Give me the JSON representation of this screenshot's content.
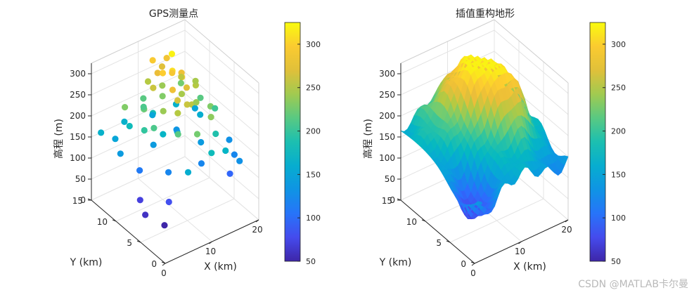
{
  "chart_data": [
    {
      "type": "scatter3d",
      "title": "GPS测量点",
      "xlabel": "X (km)",
      "ylabel": "Y (km)",
      "zlabel": "高程 (m)",
      "xlim": [
        0,
        20
      ],
      "ylim": [
        0,
        15
      ],
      "zlim": [
        0,
        325
      ],
      "xticks": [
        "0",
        "10",
        "20"
      ],
      "yticks": [
        "0",
        "5",
        "10",
        "15"
      ],
      "zticks": [
        "0",
        "50",
        "100",
        "150",
        "200",
        "250",
        "300"
      ],
      "colormap": "parula",
      "clim": [
        50,
        325
      ],
      "colorbar_ticks": [
        "50",
        "100",
        "150",
        "200",
        "250",
        "300"
      ],
      "points": [
        [
          1,
          14,
          165
        ],
        [
          3,
          13,
          150
        ],
        [
          2,
          11,
          140
        ],
        [
          5,
          12,
          180
        ],
        [
          4,
          9,
          110
        ],
        [
          6,
          14,
          165
        ],
        [
          2,
          7,
          70
        ],
        [
          8,
          10,
          140
        ],
        [
          7,
          6,
          120
        ],
        [
          10,
          12,
          185
        ],
        [
          9,
          9,
          170
        ],
        [
          5,
          4,
          80
        ],
        [
          12,
          14,
          150
        ],
        [
          11,
          8,
          175
        ],
        [
          14,
          11,
          135
        ],
        [
          13,
          5,
          120
        ],
        [
          16,
          13,
          165
        ],
        [
          15,
          7,
          140
        ],
        [
          18,
          10,
          160
        ],
        [
          17,
          3,
          95
        ],
        [
          19,
          12,
          150
        ],
        [
          20,
          6,
          130
        ],
        [
          3,
          3,
          45
        ],
        [
          1,
          5,
          60
        ],
        [
          7,
          2,
          160
        ],
        [
          10,
          3,
          225
        ],
        [
          12,
          2,
          180
        ],
        [
          15,
          2,
          170
        ],
        [
          18,
          2,
          130
        ],
        [
          19,
          4,
          120
        ],
        [
          9,
          13,
          215
        ],
        [
          11,
          11,
          230
        ],
        [
          13,
          9,
          245
        ],
        [
          14,
          7,
          240
        ],
        [
          16,
          9,
          250
        ],
        [
          12,
          6,
          255
        ],
        [
          10,
          7,
          265
        ],
        [
          8,
          8,
          240
        ],
        [
          6,
          10,
          235
        ],
        [
          4,
          12,
          230
        ],
        [
          10,
          10,
          300
        ],
        [
          11,
          9,
          310
        ],
        [
          12,
          10,
          290
        ],
        [
          13,
          11,
          320
        ],
        [
          11,
          12,
          275
        ],
        [
          9,
          11,
          260
        ],
        [
          14,
          10,
          280
        ],
        [
          12,
          8,
          300
        ],
        [
          13,
          8,
          270
        ],
        [
          10,
          8,
          280
        ],
        [
          11,
          6,
          260
        ],
        [
          9,
          6,
          250
        ],
        [
          15,
          11,
          255
        ],
        [
          16,
          6,
          230
        ],
        [
          14,
          4,
          235
        ],
        [
          8,
          5,
          215
        ],
        [
          17,
          9,
          215
        ],
        [
          18,
          7,
          205
        ],
        [
          7,
          11,
          220
        ],
        [
          6,
          8,
          210
        ],
        [
          5,
          9,
          200
        ],
        [
          15,
          4,
          190
        ],
        [
          12,
          12,
          240
        ],
        [
          13,
          13,
          270
        ],
        [
          14,
          13,
          285
        ],
        [
          11,
          13,
          295
        ],
        [
          10,
          13,
          250
        ],
        [
          8,
          12,
          210
        ],
        [
          16,
          12,
          225
        ],
        [
          17,
          10,
          245
        ]
      ]
    },
    {
      "type": "surface3d",
      "title": "插值重构地形",
      "xlabel": "X (km)",
      "ylabel": "Y (km)",
      "zlabel": "高程 (m)",
      "xlim": [
        0,
        20
      ],
      "ylim": [
        0,
        15
      ],
      "zlim": [
        0,
        325
      ],
      "xticks": [
        "0",
        "10",
        "20"
      ],
      "yticks": [
        "0",
        "5",
        "10",
        "15"
      ],
      "zticks": [
        "0",
        "50",
        "100",
        "150",
        "200",
        "250",
        "300"
      ],
      "colormap": "parula",
      "clim": [
        50,
        325
      ],
      "colorbar_ticks": [
        "50",
        "100",
        "150",
        "200",
        "250",
        "300"
      ],
      "surface": {
        "base": 160,
        "peaks": [
          {
            "x": 11,
            "y": 10,
            "h": 165,
            "s": 3.2
          },
          {
            "x": 15,
            "y": 6,
            "h": 110,
            "s": 2.6
          },
          {
            "x": 3,
            "y": 3,
            "h": -95,
            "s": 2.4
          },
          {
            "x": 17,
            "y": 2,
            "h": -45,
            "s": 3.0
          },
          {
            "x": 6,
            "y": 12,
            "h": 55,
            "s": 3.0
          }
        ]
      }
    }
  ],
  "watermark": "CSDN @MATLAB卡尔曼"
}
